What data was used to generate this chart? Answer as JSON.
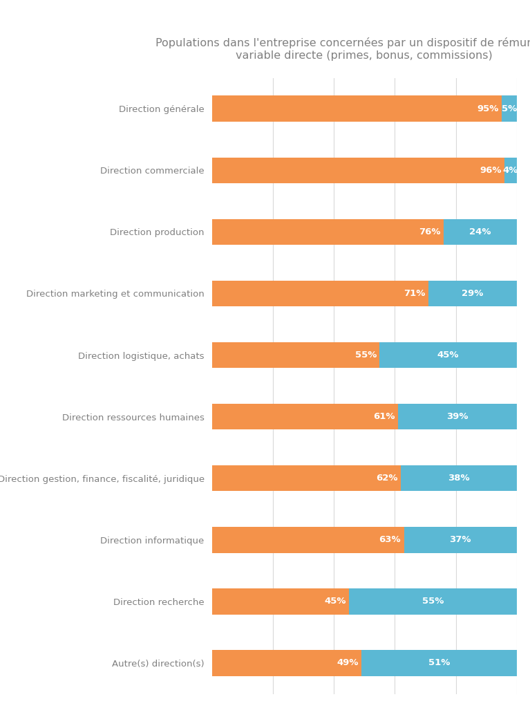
{
  "title": "Populations dans l'entreprise concernées par un dispositif de rémunération\nvariable directe (primes, bonus, commissions)",
  "categories": [
    "Direction générale",
    "Direction commerciale",
    "Direction production",
    "Direction marketing et communication",
    "Direction logistique, achats",
    "Direction ressources humaines",
    "Direction gestion, finance, fiscalité, juridique",
    "Direction informatique",
    "Direction recherche",
    "Autre(s) direction(s)"
  ],
  "orange_values": [
    95,
    96,
    76,
    71,
    55,
    61,
    62,
    63,
    45,
    49
  ],
  "blue_values": [
    5,
    4,
    24,
    29,
    45,
    39,
    38,
    37,
    55,
    51
  ],
  "orange_color": "#F4924A",
  "blue_color": "#5BB8D4",
  "background_color": "#ffffff",
  "title_color": "#808080",
  "label_color": "#808080",
  "text_color_white": "#ffffff",
  "bar_height": 0.42,
  "xlim": [
    0,
    100
  ],
  "grid_color": "#d9d9d9",
  "title_fontsize": 11.5,
  "label_fontsize": 9.5,
  "value_fontsize": 9.5
}
